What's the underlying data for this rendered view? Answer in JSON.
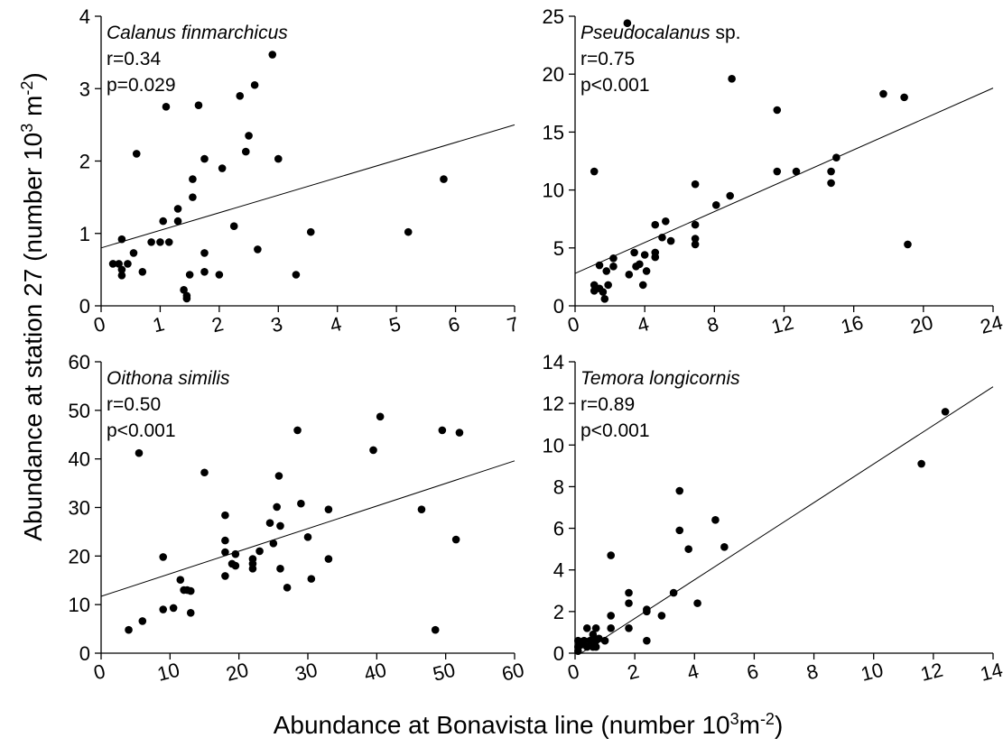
{
  "figure": {
    "ylabel_main": "Abundance at station 27 (number 10",
    "ylabel_sup1": "3",
    "ylabel_mid": " m",
    "ylabel_sup2": "-2",
    "ylabel_end": ")",
    "xlabel_main": "Abundance at Bonavista line (number 10",
    "xlabel_sup1": "3",
    "xlabel_mid": "m",
    "xlabel_sup2": "-2",
    "xlabel_end": ")"
  },
  "chart_data": [
    {
      "type": "scatter",
      "title": "Calanus finmarchicus",
      "title_suffix": "",
      "stat_r": "r=0.34",
      "stat_p": "p=0.029",
      "xlim": [
        0,
        7
      ],
      "ylim": [
        0,
        4
      ],
      "xticks": [
        0,
        1,
        2,
        3,
        4,
        5,
        6,
        7
      ],
      "yticks": [
        0,
        1,
        2,
        3,
        4
      ],
      "trendline": [
        [
          0,
          0.8
        ],
        [
          7,
          2.5
        ]
      ],
      "points": [
        [
          0.2,
          0.58
        ],
        [
          0.3,
          0.58
        ],
        [
          0.35,
          0.42
        ],
        [
          0.35,
          0.5
        ],
        [
          0.35,
          0.92
        ],
        [
          0.45,
          0.58
        ],
        [
          0.55,
          0.73
        ],
        [
          0.6,
          2.1
        ],
        [
          0.7,
          0.47
        ],
        [
          0.85,
          0.88
        ],
        [
          1.0,
          0.88
        ],
        [
          1.05,
          1.17
        ],
        [
          1.1,
          2.75
        ],
        [
          1.15,
          0.88
        ],
        [
          1.3,
          1.17
        ],
        [
          1.3,
          1.34
        ],
        [
          1.4,
          0.22
        ],
        [
          1.45,
          0.1
        ],
        [
          1.45,
          0.14
        ],
        [
          1.5,
          0.43
        ],
        [
          1.55,
          1.5
        ],
        [
          1.55,
          1.75
        ],
        [
          1.65,
          2.77
        ],
        [
          1.75,
          2.03
        ],
        [
          1.75,
          0.73
        ],
        [
          1.75,
          0.47
        ],
        [
          2.0,
          0.43
        ],
        [
          2.05,
          1.9
        ],
        [
          2.25,
          1.1
        ],
        [
          2.35,
          2.9
        ],
        [
          2.45,
          2.13
        ],
        [
          2.5,
          2.35
        ],
        [
          2.6,
          3.05
        ],
        [
          2.65,
          0.78
        ],
        [
          2.9,
          3.47
        ],
        [
          3.0,
          2.03
        ],
        [
          3.3,
          0.43
        ],
        [
          3.55,
          1.02
        ],
        [
          5.2,
          1.02
        ],
        [
          5.8,
          1.75
        ]
      ]
    },
    {
      "type": "scatter",
      "title": "Pseudocalanus",
      "title_suffix": " sp.",
      "stat_r": "r=0.75",
      "stat_p": "p<0.001",
      "xlim": [
        0,
        24
      ],
      "ylim": [
        0,
        25
      ],
      "xticks": [
        0,
        4,
        8,
        12,
        16,
        20,
        24
      ],
      "yticks": [
        0,
        5,
        10,
        15,
        20,
        25
      ],
      "trendline": [
        [
          0,
          2.8
        ],
        [
          24,
          18.8
        ]
      ],
      "points": [
        [
          1.1,
          11.6
        ],
        [
          1.1,
          1.8
        ],
        [
          1.1,
          1.3
        ],
        [
          1.4,
          1.5
        ],
        [
          1.4,
          3.5
        ],
        [
          1.6,
          1.2
        ],
        [
          1.7,
          0.6
        ],
        [
          1.8,
          3.0
        ],
        [
          1.9,
          1.8
        ],
        [
          2.2,
          4.1
        ],
        [
          2.2,
          3.4
        ],
        [
          3.0,
          24.4
        ],
        [
          3.1,
          2.7
        ],
        [
          3.4,
          4.6
        ],
        [
          3.5,
          3.4
        ],
        [
          3.7,
          3.6
        ],
        [
          3.9,
          1.8
        ],
        [
          4.0,
          4.4
        ],
        [
          4.1,
          3.0
        ],
        [
          4.6,
          7.0
        ],
        [
          4.6,
          4.2
        ],
        [
          4.6,
          4.6
        ],
        [
          5.0,
          5.9
        ],
        [
          5.2,
          7.3
        ],
        [
          5.5,
          5.6
        ],
        [
          6.9,
          10.5
        ],
        [
          6.9,
          7.0
        ],
        [
          6.9,
          5.8
        ],
        [
          6.9,
          5.3
        ],
        [
          8.1,
          8.7
        ],
        [
          8.9,
          9.5
        ],
        [
          9.0,
          19.6
        ],
        [
          11.6,
          16.9
        ],
        [
          11.6,
          11.6
        ],
        [
          12.7,
          11.6
        ],
        [
          14.7,
          11.6
        ],
        [
          14.7,
          10.6
        ],
        [
          15.0,
          12.8
        ],
        [
          17.7,
          18.3
        ],
        [
          18.9,
          18.0
        ],
        [
          19.1,
          5.3
        ]
      ]
    },
    {
      "type": "scatter",
      "title": "Oithona similis",
      "title_suffix": "",
      "stat_r": "r=0.50",
      "stat_p": "p<0.001",
      "xlim": [
        0,
        60
      ],
      "ylim": [
        0,
        60
      ],
      "xticks": [
        0,
        10,
        20,
        30,
        40,
        50,
        60
      ],
      "yticks": [
        0,
        10,
        20,
        30,
        40,
        50,
        60
      ],
      "trendline": [
        [
          0,
          11.7
        ],
        [
          60,
          39.6
        ]
      ],
      "points": [
        [
          4,
          4.8
        ],
        [
          5.5,
          41.2
        ],
        [
          6,
          6.6
        ],
        [
          9,
          19.8
        ],
        [
          9,
          9.0
        ],
        [
          10.5,
          9.3
        ],
        [
          11.5,
          15.1
        ],
        [
          12,
          13.0
        ],
        [
          12.5,
          13.0
        ],
        [
          13,
          12.8
        ],
        [
          13,
          8.3
        ],
        [
          15,
          37.2
        ],
        [
          18,
          28.4
        ],
        [
          18,
          23.2
        ],
        [
          18,
          20.8
        ],
        [
          18,
          15.9
        ],
        [
          19,
          18.4
        ],
        [
          19.5,
          20.4
        ],
        [
          19.5,
          18.0
        ],
        [
          22,
          19.4
        ],
        [
          22,
          18.4
        ],
        [
          22,
          17.4
        ],
        [
          23,
          21.0
        ],
        [
          24.5,
          26.8
        ],
        [
          25,
          22.6
        ],
        [
          25.5,
          30.1
        ],
        [
          25.8,
          36.5
        ],
        [
          26,
          26.2
        ],
        [
          26,
          17.4
        ],
        [
          27,
          13.5
        ],
        [
          28.5,
          45.9
        ],
        [
          29,
          30.8
        ],
        [
          30,
          23.9
        ],
        [
          30.5,
          15.3
        ],
        [
          33,
          29.6
        ],
        [
          33,
          19.4
        ],
        [
          39.5,
          41.8
        ],
        [
          40.5,
          48.7
        ],
        [
          46.5,
          29.6
        ],
        [
          48.5,
          4.8
        ],
        [
          49.5,
          45.9
        ],
        [
          51.5,
          23.4
        ],
        [
          52,
          45.4
        ]
      ]
    },
    {
      "type": "scatter",
      "title": "Temora longicornis",
      "title_suffix": "",
      "stat_r": "r=0.89",
      "stat_p": "p<0.001",
      "xlim": [
        0,
        14
      ],
      "ylim": [
        0,
        14
      ],
      "xticks": [
        0,
        2,
        4,
        6,
        8,
        10,
        12,
        14
      ],
      "yticks": [
        0,
        2,
        4,
        6,
        8,
        10,
        12,
        14
      ],
      "trendline": [
        [
          0.2,
          0
        ],
        [
          14,
          12.8
        ]
      ],
      "points": [
        [
          0.1,
          0.1
        ],
        [
          0.1,
          0.3
        ],
        [
          0.1,
          0.6
        ],
        [
          0.2,
          0.4
        ],
        [
          0.3,
          0.6
        ],
        [
          0.4,
          1.2
        ],
        [
          0.4,
          0.3
        ],
        [
          0.5,
          0.6
        ],
        [
          0.6,
          0.9
        ],
        [
          0.6,
          0.3
        ],
        [
          0.7,
          1.2
        ],
        [
          0.7,
          0.6
        ],
        [
          0.7,
          0.3
        ],
        [
          0.8,
          0.7
        ],
        [
          1.0,
          0.6
        ],
        [
          1.2,
          1.2
        ],
        [
          1.2,
          1.8
        ],
        [
          1.2,
          4.7
        ],
        [
          1.8,
          2.4
        ],
        [
          1.8,
          2.9
        ],
        [
          1.8,
          1.2
        ],
        [
          2.4,
          2.1
        ],
        [
          2.4,
          2.0
        ],
        [
          2.4,
          0.6
        ],
        [
          2.9,
          1.8
        ],
        [
          3.3,
          2.9
        ],
        [
          3.5,
          7.8
        ],
        [
          3.5,
          5.9
        ],
        [
          3.8,
          5.0
        ],
        [
          4.1,
          2.4
        ],
        [
          4.7,
          6.4
        ],
        [
          5.0,
          5.1
        ],
        [
          11.6,
          9.1
        ],
        [
          12.4,
          11.6
        ]
      ]
    }
  ]
}
